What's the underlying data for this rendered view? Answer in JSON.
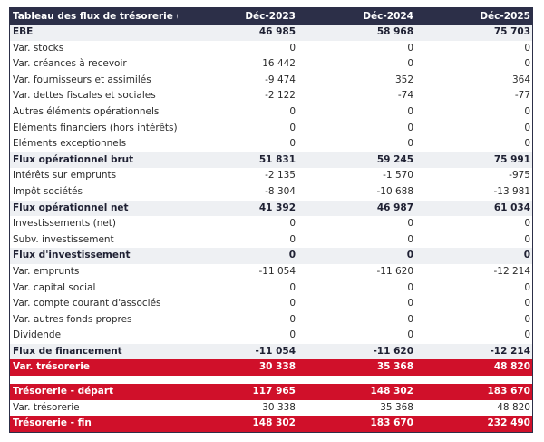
{
  "table": {
    "title": "Tableau des flux de trésorerie (£)",
    "columns": [
      "Déc-2023",
      "Déc-2024",
      "Déc-2025"
    ],
    "colors": {
      "header": "#2c2f48",
      "highlight": "#d0102a",
      "subtotal": "#eef0f3"
    },
    "rows": [
      {
        "label": "EBE",
        "style": "bold",
        "values": [
          "46 985",
          "58 968",
          "75 703"
        ]
      },
      {
        "label": "Var. stocks",
        "style": "normal",
        "values": [
          "0",
          "0",
          "0"
        ]
      },
      {
        "label": "Var. créances à recevoir",
        "style": "normal",
        "values": [
          "16 442",
          "0",
          "0"
        ]
      },
      {
        "label": "Var. fournisseurs et assimilés",
        "style": "normal",
        "values": [
          "-9 474",
          "352",
          "364"
        ]
      },
      {
        "label": "Var. dettes fiscales et sociales",
        "style": "normal",
        "values": [
          "-2 122",
          "-74",
          "-77"
        ]
      },
      {
        "label": "Autres éléments opérationnels",
        "style": "normal",
        "values": [
          "0",
          "0",
          "0"
        ]
      },
      {
        "label": "Eléments financiers (hors intérêts)",
        "style": "normal",
        "values": [
          "0",
          "0",
          "0"
        ]
      },
      {
        "label": "Eléments exceptionnels",
        "style": "normal",
        "values": [
          "0",
          "0",
          "0"
        ]
      },
      {
        "label": "Flux opérationnel brut",
        "style": "bold",
        "values": [
          "51 831",
          "59 245",
          "75 991"
        ]
      },
      {
        "label": "Intérêts sur emprunts",
        "style": "normal",
        "values": [
          "-2 135",
          "-1 570",
          "-975"
        ]
      },
      {
        "label": "Impôt sociétés",
        "style": "normal",
        "values": [
          "-8 304",
          "-10 688",
          "-13 981"
        ]
      },
      {
        "label": "Flux opérationnel net",
        "style": "bold",
        "values": [
          "41 392",
          "46 987",
          "61 034"
        ]
      },
      {
        "label": "Investissements (net)",
        "style": "normal",
        "values": [
          "0",
          "0",
          "0"
        ]
      },
      {
        "label": "Subv. investissement",
        "style": "normal",
        "values": [
          "0",
          "0",
          "0"
        ]
      },
      {
        "label": "Flux d'investissement",
        "style": "bold",
        "values": [
          "0",
          "0",
          "0"
        ]
      },
      {
        "label": "Var. emprunts",
        "style": "normal",
        "values": [
          "-11 054",
          "-11 620",
          "-12 214"
        ]
      },
      {
        "label": "Var. capital social",
        "style": "normal",
        "values": [
          "0",
          "0",
          "0"
        ]
      },
      {
        "label": "Var. compte courant d'associés",
        "style": "normal",
        "values": [
          "0",
          "0",
          "0"
        ]
      },
      {
        "label": "Var. autres fonds propres",
        "style": "normal",
        "values": [
          "0",
          "0",
          "0"
        ]
      },
      {
        "label": "Dividende",
        "style": "normal",
        "values": [
          "0",
          "0",
          "0"
        ]
      },
      {
        "label": "Flux de financement",
        "style": "bold",
        "values": [
          "-11 054",
          "-11 620",
          "-12 214"
        ]
      },
      {
        "label": "Var. trésorerie",
        "style": "red",
        "values": [
          "30 338",
          "35 368",
          "48 820"
        ]
      },
      {
        "label": "Trésorerie - départ",
        "style": "red",
        "gap_before": true,
        "values": [
          "117 965",
          "148 302",
          "183 670"
        ]
      },
      {
        "label": "Var. trésorerie",
        "style": "normal",
        "values": [
          "30 338",
          "35 368",
          "48 820"
        ]
      },
      {
        "label": "Trésorerie - fin",
        "style": "red",
        "values": [
          "148 302",
          "183 670",
          "232 490"
        ]
      }
    ]
  }
}
